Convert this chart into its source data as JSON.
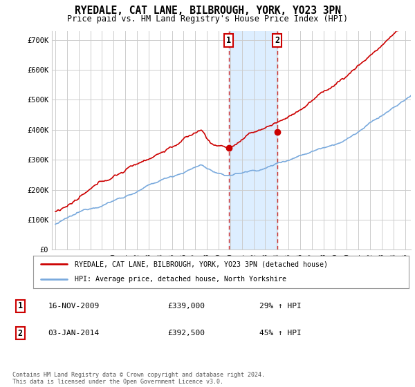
{
  "title": "RYEDALE, CAT LANE, BILBROUGH, YORK, YO23 3PN",
  "subtitle": "Price paid vs. HM Land Registry's House Price Index (HPI)",
  "ylabel_ticks": [
    "£0",
    "£100K",
    "£200K",
    "£300K",
    "£400K",
    "£500K",
    "£600K",
    "£700K"
  ],
  "ytick_values": [
    0,
    100000,
    200000,
    300000,
    400000,
    500000,
    600000,
    700000
  ],
  "ylim": [
    0,
    730000
  ],
  "sale1_x": 2009.88,
  "sale1_price": 339000,
  "sale2_x": 2014.03,
  "sale2_price": 392500,
  "legend_property": "RYEDALE, CAT LANE, BILBROUGH, YORK, YO23 3PN (detached house)",
  "legend_hpi": "HPI: Average price, detached house, North Yorkshire",
  "footer": "Contains HM Land Registry data © Crown copyright and database right 2024.\nThis data is licensed under the Open Government Licence v3.0.",
  "property_color": "#cc0000",
  "hpi_color": "#7aaadd",
  "highlight_bg": "#ddeeff",
  "grid_color": "#cccccc",
  "background_color": "#ffffff",
  "sale1_date_str": "16-NOV-2009",
  "sale1_price_str": "£339,000",
  "sale1_hpi_str": "29% ↑ HPI",
  "sale2_date_str": "03-JAN-2014",
  "sale2_price_str": "£392,500",
  "sale2_hpi_str": "45% ↑ HPI"
}
